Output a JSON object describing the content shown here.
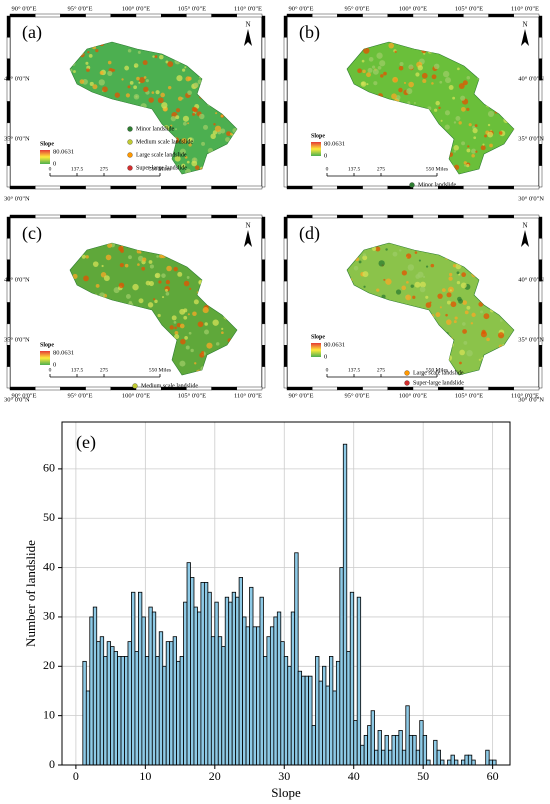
{
  "maps": {
    "lon_labels": [
      "90° 0'0\"E",
      "95° 0'0\"E",
      "100° 0'0\"E",
      "105° 0'0\"E",
      "110° 0'0\"E"
    ],
    "lat_labels": [
      "40° 0'0\"N",
      "35° 0'0\"N",
      "30° 0'0\"N"
    ],
    "north": "N",
    "slope_title": "Slope",
    "slope_max": "80.0631",
    "slope_min": "0",
    "scale_labels": [
      "0",
      "137.5",
      "275",
      "550 Miles"
    ],
    "panels": [
      {
        "label": "(a)",
        "legend": [
          "Minor landslide",
          "Medium scale landslide",
          "Large scale landslide",
          "Super-large landslide"
        ]
      },
      {
        "label": "(b)",
        "legend": [
          "Minor landslide"
        ]
      },
      {
        "label": "(c)",
        "legend": [
          "Medium scale landslide"
        ]
      },
      {
        "label": "(d)",
        "legend": [
          "Large scale landslide",
          "Super-large landslide"
        ]
      }
    ]
  },
  "chart_data": {
    "type": "histogram",
    "panel_label": "(e)",
    "x_label": "Slope",
    "y_label": "Number of landslide",
    "color": "#8ecae6",
    "grid": true,
    "xlim": [
      -2,
      62.5
    ],
    "ylim": [
      0,
      69.5
    ],
    "xticks": [
      0,
      10,
      20,
      30,
      40,
      50,
      60
    ],
    "yticks": [
      0,
      10,
      20,
      30,
      40,
      50,
      60
    ],
    "bins": [
      1,
      1.5,
      2,
      2.5,
      3,
      3.5,
      4,
      4.5,
      5,
      5.5,
      6,
      6.5,
      7,
      7.5,
      8,
      8.5,
      9,
      9.5,
      10,
      10.5,
      11,
      11.5,
      12,
      12.5,
      13,
      13.5,
      14,
      14.5,
      15,
      15.5,
      16,
      16.5,
      17,
      17.5,
      18,
      18.5,
      19,
      19.5,
      20,
      20.5,
      21,
      21.5,
      22,
      22.5,
      23,
      23.5,
      24,
      24.5,
      25,
      25.5,
      26,
      26.5,
      27,
      27.5,
      28,
      28.5,
      29,
      29.5,
      30,
      30.5,
      31,
      31.5,
      32,
      32.5,
      33,
      33.5,
      34,
      34.5,
      35,
      35.5,
      36,
      36.5,
      37,
      37.5,
      38,
      38.5,
      39,
      39.5,
      40,
      40.5,
      41,
      41.5,
      42,
      42.5,
      43,
      43.5,
      44,
      44.5,
      45,
      45.5,
      46,
      46.5,
      47,
      47.5,
      48,
      48.5,
      49,
      49.5,
      50,
      50.5,
      51,
      51.5,
      52,
      52.5,
      53,
      53.5,
      54,
      54.5,
      55,
      55.5,
      56,
      56.5,
      57,
      57.5,
      58,
      58.5,
      59,
      59.5,
      60,
      60.5
    ],
    "counts": [
      21,
      15,
      30,
      32,
      25,
      26,
      22,
      25,
      24,
      23,
      22,
      22,
      22,
      25,
      35,
      23,
      35,
      30,
      22,
      32,
      31,
      22,
      27,
      20,
      25,
      25,
      26,
      21,
      22,
      33,
      41,
      38,
      32,
      31,
      37,
      37,
      35,
      26,
      33,
      26,
      24,
      34,
      33,
      35,
      34,
      38,
      30,
      28,
      36,
      28,
      28,
      34,
      22,
      26,
      28,
      30,
      31,
      25,
      22,
      20,
      31,
      43,
      19,
      18,
      18,
      18,
      8,
      22,
      17,
      20,
      16,
      22,
      15,
      21,
      40,
      65,
      23,
      35,
      9,
      34,
      4,
      6,
      8,
      11,
      3,
      7,
      3,
      6,
      3,
      6,
      6,
      7,
      3,
      12,
      6,
      6,
      3,
      9,
      6,
      1,
      0,
      5,
      3,
      1,
      0,
      1,
      2,
      1,
      0,
      1,
      2,
      2,
      1,
      0,
      0,
      0,
      3,
      1,
      1
    ]
  }
}
